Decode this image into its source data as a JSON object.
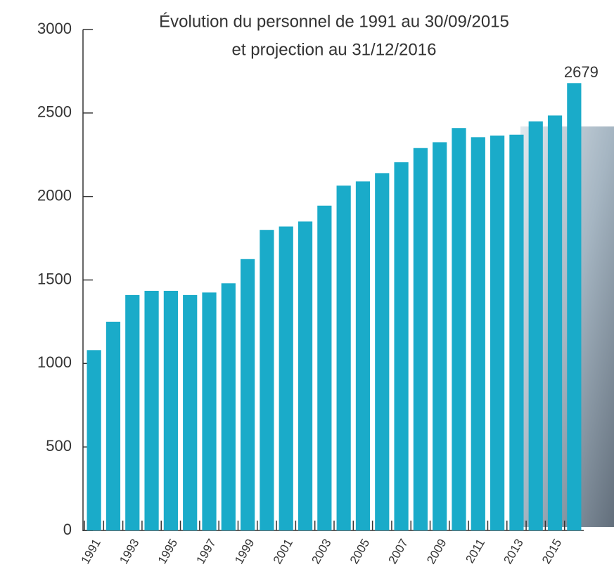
{
  "chart_data": {
    "type": "bar",
    "title": [
      "Évolution du personnel de 1991 au 30/09/2015",
      "et projection au 31/12/2016"
    ],
    "categories": [
      "1991",
      null,
      "1993",
      null,
      "1995",
      null,
      "1997",
      null,
      "1999",
      null,
      "2001",
      null,
      "2003",
      null,
      "2005",
      null,
      "2007",
      null,
      "2009",
      null,
      "2011",
      null,
      "2013",
      null,
      "2015",
      null
    ],
    "values": [
      1080,
      1250,
      1410,
      1435,
      1435,
      1410,
      1425,
      1480,
      1625,
      1800,
      1820,
      1850,
      1945,
      2065,
      2090,
      2140,
      2205,
      2290,
      2325,
      2410,
      2355,
      2365,
      2370,
      2450,
      2485,
      2679
    ],
    "value_labels": [
      null,
      null,
      null,
      null,
      null,
      null,
      null,
      null,
      null,
      null,
      null,
      null,
      null,
      null,
      null,
      null,
      null,
      null,
      null,
      null,
      null,
      null,
      null,
      null,
      null,
      "2679"
    ],
    "color": "#1aabc9",
    "ylim": [
      0,
      3000
    ],
    "yticks": [
      0,
      500,
      1000,
      1500,
      2000,
      2500,
      3000
    ]
  }
}
